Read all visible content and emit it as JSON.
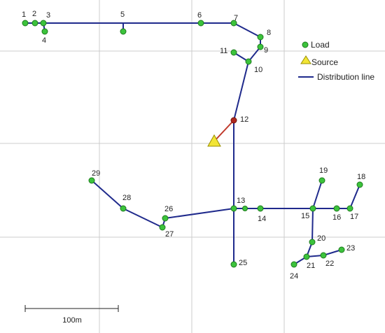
{
  "network": {
    "colors": {
      "line": "#1f2a8c",
      "source_line": "#c0392b",
      "load": "#3cc33c",
      "load_stroke": "#1e7a1e",
      "junction": "#b0281f",
      "source": "#f2e535",
      "grid": "#cccccc"
    },
    "nodes": [
      {
        "id": "1",
        "label": "1",
        "kind": "load"
      },
      {
        "id": "2",
        "label": "2",
        "kind": "load"
      },
      {
        "id": "3",
        "label": "3",
        "kind": "load"
      },
      {
        "id": "4",
        "label": "4",
        "kind": "load"
      },
      {
        "id": "5",
        "label": "5",
        "kind": "load"
      },
      {
        "id": "6",
        "label": "6",
        "kind": "load"
      },
      {
        "id": "7",
        "label": "7",
        "kind": "load"
      },
      {
        "id": "8",
        "label": "8",
        "kind": "load"
      },
      {
        "id": "9",
        "label": "9",
        "kind": "load"
      },
      {
        "id": "10",
        "label": "10",
        "kind": "load"
      },
      {
        "id": "11",
        "label": "11",
        "kind": "load"
      },
      {
        "id": "12",
        "label": "12",
        "kind": "junction"
      },
      {
        "id": "13",
        "label": "13",
        "kind": "load"
      },
      {
        "id": "14",
        "label": "14",
        "kind": "load"
      },
      {
        "id": "15",
        "label": "15",
        "kind": "load"
      },
      {
        "id": "16",
        "label": "16",
        "kind": "load"
      },
      {
        "id": "17",
        "label": "17",
        "kind": "load"
      },
      {
        "id": "18",
        "label": "18",
        "kind": "load"
      },
      {
        "id": "19",
        "label": "19",
        "kind": "load"
      },
      {
        "id": "20",
        "label": "20",
        "kind": "load"
      },
      {
        "id": "21",
        "label": "21",
        "kind": "load"
      },
      {
        "id": "22",
        "label": "22",
        "kind": "load"
      },
      {
        "id": "23",
        "label": "23",
        "kind": "load"
      },
      {
        "id": "24",
        "label": "24",
        "kind": "load"
      },
      {
        "id": "25",
        "label": "25",
        "kind": "load"
      },
      {
        "id": "26",
        "label": "26",
        "kind": "load"
      },
      {
        "id": "27",
        "label": "27",
        "kind": "load"
      },
      {
        "id": "28",
        "label": "28",
        "kind": "load"
      },
      {
        "id": "29",
        "label": "29",
        "kind": "load"
      },
      {
        "id": "S",
        "label": "",
        "kind": "source"
      }
    ],
    "lines": [
      {
        "from": "1",
        "to": "2"
      },
      {
        "from": "2",
        "to": "3"
      },
      {
        "from": "3",
        "to": "4"
      },
      {
        "from": "3",
        "to": "J0"
      },
      {
        "from": "J0",
        "to": "J1"
      },
      {
        "from": "J1",
        "to": "5"
      },
      {
        "from": "J1",
        "to": "6"
      },
      {
        "from": "6",
        "to": "7"
      },
      {
        "from": "7",
        "to": "8"
      },
      {
        "from": "8",
        "to": "9"
      },
      {
        "from": "9",
        "to": "10"
      },
      {
        "from": "10",
        "to": "11"
      },
      {
        "from": "10",
        "to": "12"
      },
      {
        "from": "12",
        "to": "13"
      },
      {
        "from": "13",
        "to": "14"
      },
      {
        "from": "14",
        "to": "15"
      },
      {
        "from": "15",
        "to": "16"
      },
      {
        "from": "16",
        "to": "17"
      },
      {
        "from": "17",
        "to": "18"
      },
      {
        "from": "15",
        "to": "19"
      },
      {
        "from": "15",
        "to": "20"
      },
      {
        "from": "20",
        "to": "21"
      },
      {
        "from": "21",
        "to": "22"
      },
      {
        "from": "22",
        "to": "23"
      },
      {
        "from": "21",
        "to": "24"
      },
      {
        "from": "13",
        "to": "25"
      },
      {
        "from": "13",
        "to": "26"
      },
      {
        "from": "26",
        "to": "27"
      },
      {
        "from": "27",
        "to": "28"
      },
      {
        "from": "28",
        "to": "29"
      },
      {
        "from": "12",
        "to": "S",
        "kind": "source"
      }
    ]
  },
  "legend": {
    "load_label": "Load",
    "source_label": "Source",
    "line_label": "Distribution line"
  },
  "scale_bar": {
    "label": "100m"
  }
}
